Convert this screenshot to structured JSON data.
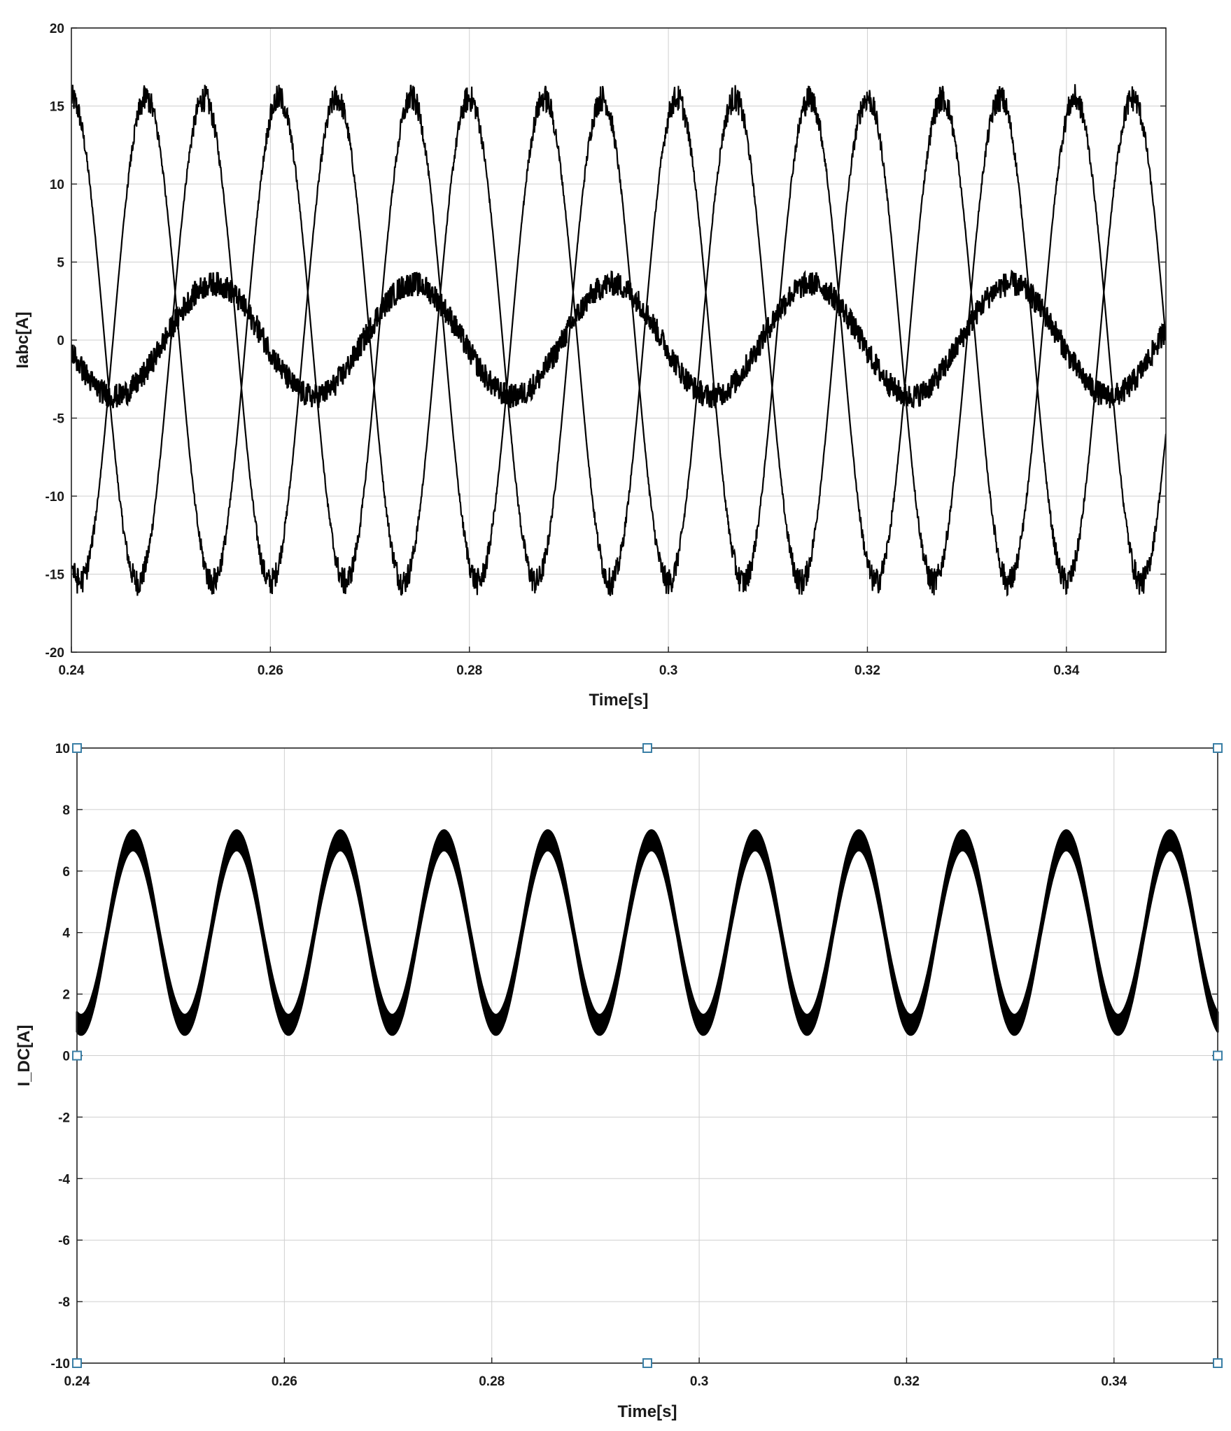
{
  "chart_data": [
    {
      "type": "line",
      "title": "",
      "xlabel": "Time[s]",
      "ylabel": "Iabc[A]",
      "xlim": [
        0.24,
        0.35
      ],
      "ylim": [
        -20,
        20
      ],
      "x_ticks": [
        0.24,
        0.26,
        0.28,
        0.3,
        0.32,
        0.34
      ],
      "x_tick_labels": [
        "0.24",
        "0.26",
        "0.28",
        "0.3",
        "0.32",
        "0.34"
      ],
      "y_ticks": [
        -20,
        -15,
        -10,
        -5,
        0,
        5,
        10,
        15,
        20
      ],
      "y_tick_labels": [
        "-20",
        "-15",
        "-10",
        "-5",
        "0",
        "5",
        "10",
        "15",
        "20"
      ],
      "grid": true,
      "legend": "none",
      "series_color": "#000000",
      "series": [
        {
          "frequency_hz": 75,
          "amplitude": 15.5,
          "ripple": 0.9,
          "x": [
            0.24,
            0.2434,
            0.2467,
            0.25,
            0.2534,
            0.2567,
            0.26,
            0.2634,
            0.2667,
            0.27
          ],
          "y": [
            14.5,
            15.5,
            0,
            -15.5,
            0,
            15.5,
            0,
            -15.5,
            0,
            15.5
          ]
        },
        {
          "frequency_hz": 75,
          "amplitude": 15.5,
          "ripple": 0.9,
          "x": [
            0.24,
            0.2434,
            0.2467,
            0.25,
            0.2534,
            0.2567,
            0.26
          ],
          "y": [
            -14.5,
            0,
            15.5,
            0,
            -15.5,
            0,
            15.5
          ]
        },
        {
          "frequency_hz": 50,
          "amplitude": 3.6,
          "ripple": 0.8,
          "x": [
            0.24,
            0.245,
            0.25,
            0.255,
            0.26,
            0.265,
            0.27
          ],
          "y": [
            0,
            -3.6,
            0,
            3.6,
            0,
            -3.6,
            0
          ]
        }
      ]
    },
    {
      "type": "line",
      "title": "",
      "xlabel": "Time[s]",
      "ylabel": "I_DC[A]",
      "xlim": [
        0.24,
        0.35
      ],
      "ylim": [
        -10,
        10
      ],
      "x_ticks": [
        0.24,
        0.26,
        0.28,
        0.3,
        0.32,
        0.34
      ],
      "x_tick_labels": [
        "0.24",
        "0.26",
        "0.28",
        "0.3",
        "0.32",
        "0.34"
      ],
      "y_ticks": [
        -10,
        -8,
        -6,
        -4,
        -2,
        0,
        2,
        4,
        6,
        8,
        10
      ],
      "y_tick_labels": [
        "-10",
        "-8",
        "-6",
        "-4",
        "-2",
        "0",
        "2",
        "4",
        "6",
        "8",
        "10"
      ],
      "grid": true,
      "legend": "none",
      "series_color": "#000000",
      "series": [
        {
          "frequency_hz": 100,
          "mean": 4.0,
          "amplitude": 3.0,
          "band": 0.25,
          "x": [
            0.24,
            0.2425,
            0.245,
            0.2475,
            0.25,
            0.2525,
            0.255
          ],
          "y": [
            1.0,
            4.0,
            7.0,
            4.0,
            1.0,
            4.0,
            7.0
          ]
        }
      ],
      "axes_markers_color": "#3a7fa6"
    }
  ]
}
